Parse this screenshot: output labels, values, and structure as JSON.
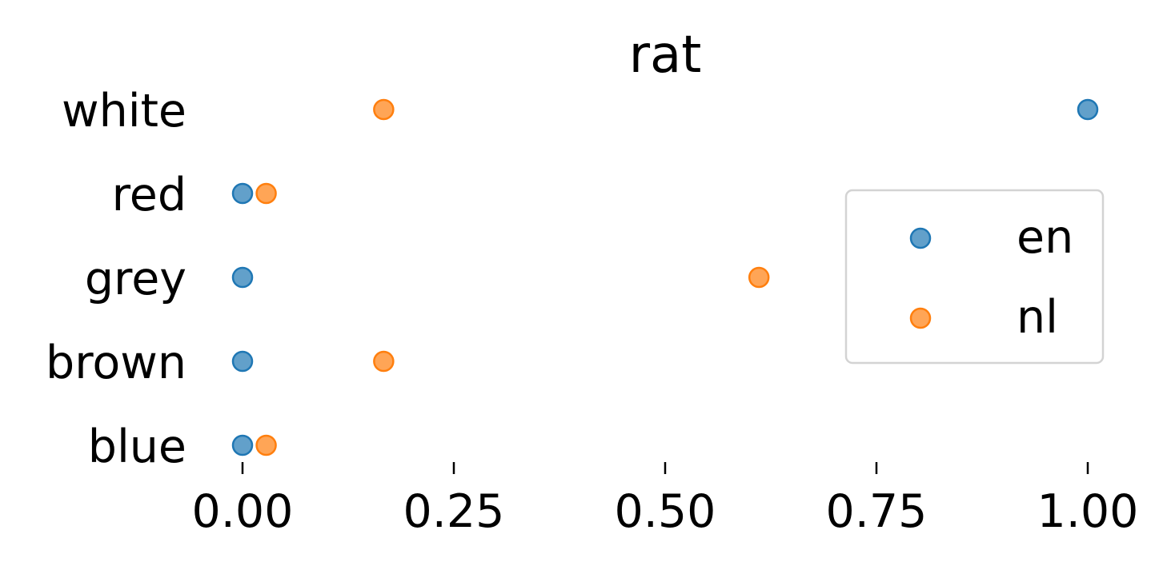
{
  "chart_data": {
    "type": "scatter",
    "title": "rat",
    "xlabel": "",
    "ylabel": "",
    "categories": [
      "white",
      "red",
      "grey",
      "brown",
      "blue"
    ],
    "xlim": [
      0.0,
      1.0
    ],
    "xticks": [
      0.0,
      0.25,
      0.5,
      0.75,
      1.0
    ],
    "xtick_labels": [
      "0.00",
      "0.25",
      "0.50",
      "0.75",
      "1.00"
    ],
    "grid": false,
    "legend_position": "center-right",
    "series": [
      {
        "name": "en",
        "color": "#1f77b4",
        "values": [
          1.0,
          0.0,
          0.0,
          0.0,
          0.0
        ]
      },
      {
        "name": "nl",
        "color": "#ff7f0e",
        "values": [
          0.167,
          0.028,
          0.611,
          0.167,
          0.028
        ]
      }
    ]
  }
}
